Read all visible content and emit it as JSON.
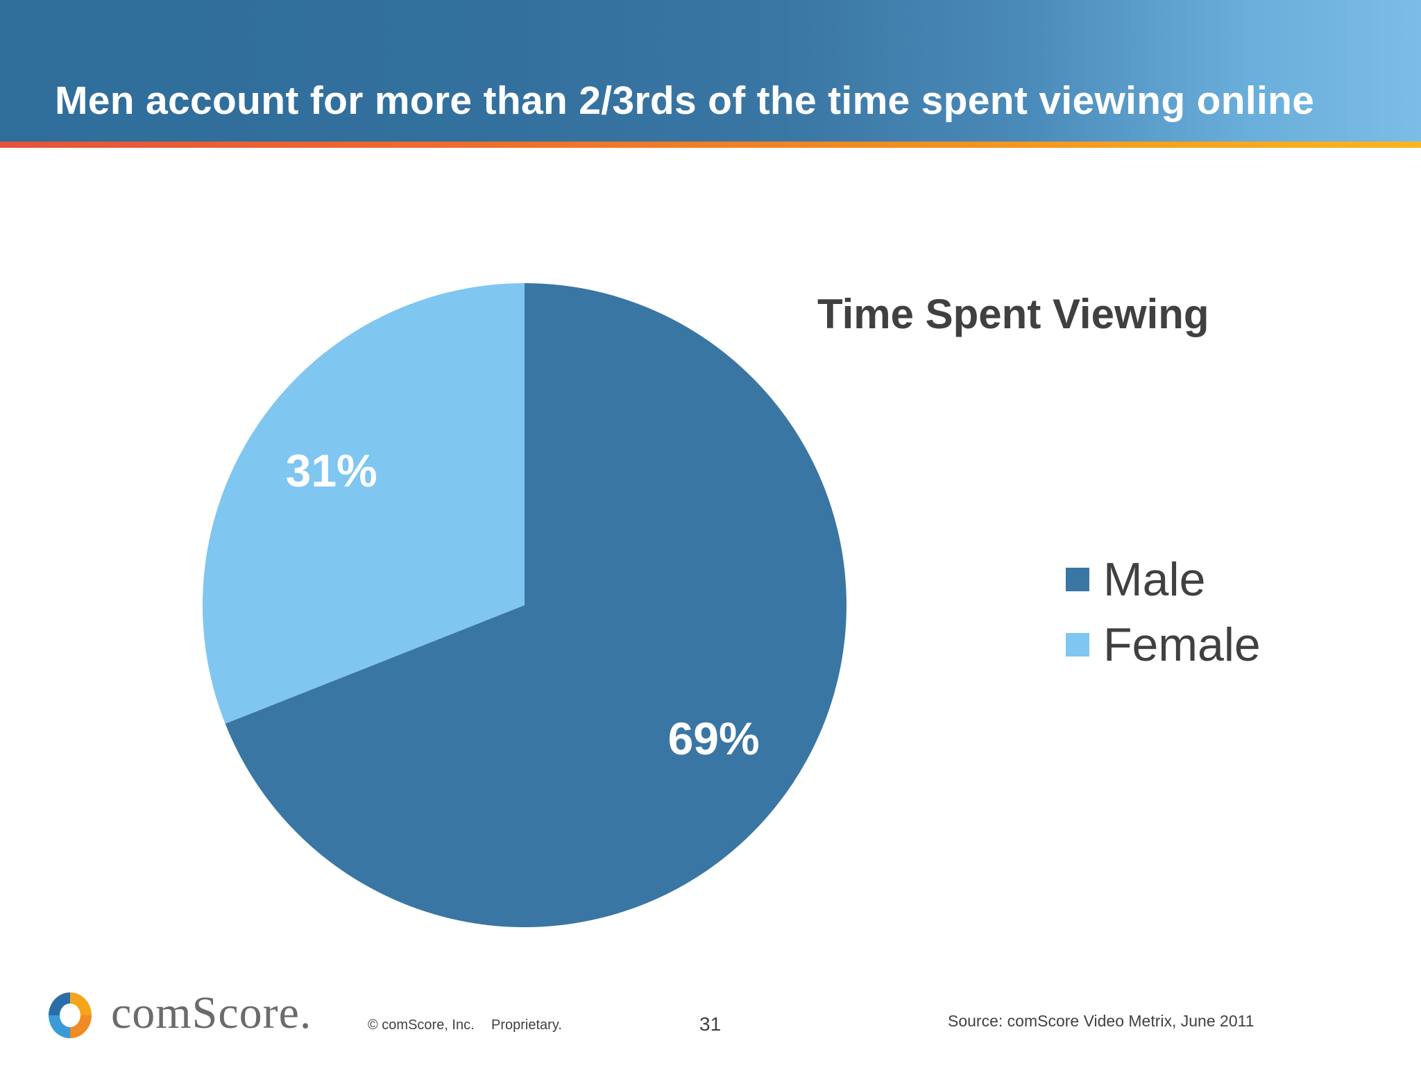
{
  "slide": {
    "title": "Men account for more than 2/3rds of the time spent viewing online"
  },
  "chart_data": {
    "type": "pie",
    "title": "Time Spent Viewing",
    "slices": [
      {
        "name": "Male",
        "value": 69,
        "label": "69%",
        "color": "#3a76a4"
      },
      {
        "name": "Female",
        "value": 31,
        "label": "31%",
        "color": "#7fc6f1"
      }
    ],
    "start_angle": "12 o'clock",
    "direction": "clockwise",
    "legend_position": "right",
    "data_label_color": "#ffffff"
  },
  "footer": {
    "logo_text": "comScore.",
    "copyright": "© comScore, Inc.",
    "proprietary": "Proprietary.",
    "page_number": "31",
    "source": "Source: comScore Video Metrix, June 2011"
  },
  "colors": {
    "header_blue": "#33709d",
    "accent_orange": "#f08a22",
    "text_gray": "#404040"
  }
}
